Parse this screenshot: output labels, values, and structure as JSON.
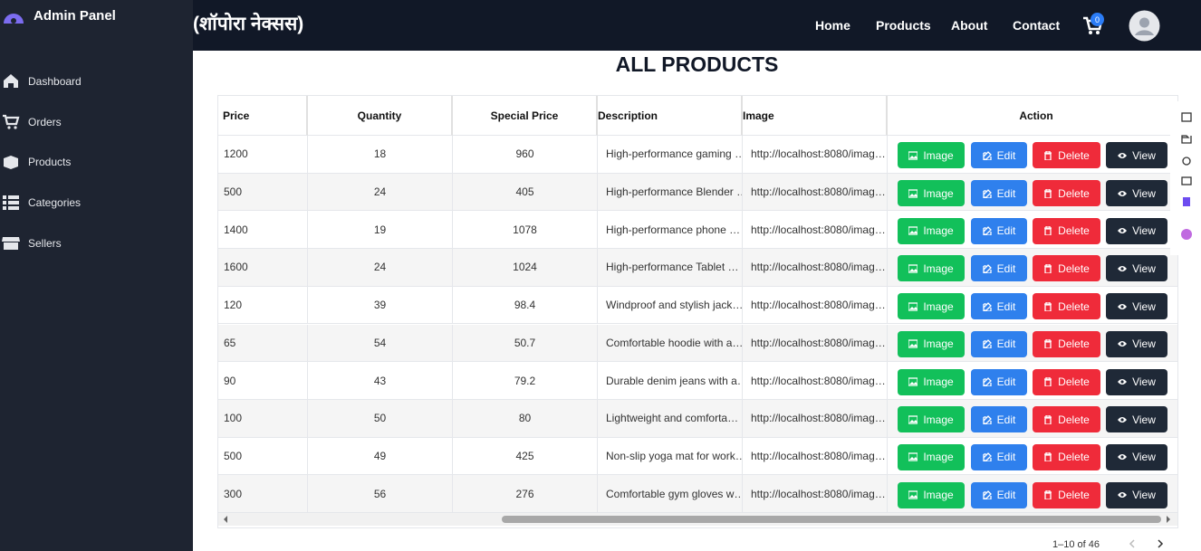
{
  "sidebar": {
    "title": "Admin Panel",
    "items": [
      "Dashboard",
      "Orders",
      "Products",
      "Categories",
      "Sellers"
    ]
  },
  "navbar": {
    "brand": "(शॉपोरा नेक्सस)",
    "links": [
      "Home",
      "Products",
      "About",
      "Contact"
    ],
    "cart_count": "0"
  },
  "heading": "ALL PRODUCTS",
  "table": {
    "headers": [
      "Price",
      "Quantity",
      "Special Price",
      "Description",
      "Image",
      "Action"
    ],
    "rows": [
      [
        1200,
        18,
        960,
        "High-performance gaming …",
        "http://localhost:8080/imag…"
      ],
      [
        500,
        24,
        405,
        "High-performance Blender …",
        "http://localhost:8080/imag…"
      ],
      [
        1400,
        19,
        1078,
        "High-performance phone …",
        "http://localhost:8080/imag…"
      ],
      [
        1600,
        24,
        1024,
        "High-performance Tablet …",
        "http://localhost:8080/imag…"
      ],
      [
        120,
        39,
        98.4,
        "Windproof and stylish jack…",
        "http://localhost:8080/imag…"
      ],
      [
        65,
        54,
        50.7,
        "Comfortable hoodie with a…",
        "http://localhost:8080/imag…"
      ],
      [
        90,
        43,
        79.2,
        "Durable denim jeans with a…",
        "http://localhost:8080/imag…"
      ],
      [
        100,
        50,
        80,
        "Lightweight and comforta…",
        "http://localhost:8080/imag…"
      ],
      [
        500,
        49,
        425,
        "Non-slip yoga mat for work…",
        "http://localhost:8080/imag…"
      ],
      [
        300,
        56,
        276,
        "Comfortable gym gloves w…",
        "http://localhost:8080/imag…"
      ]
    ],
    "action_buttons": [
      "Image",
      "Edit",
      "Delete",
      "View"
    ]
  },
  "pagination": "1–10 of 46"
}
